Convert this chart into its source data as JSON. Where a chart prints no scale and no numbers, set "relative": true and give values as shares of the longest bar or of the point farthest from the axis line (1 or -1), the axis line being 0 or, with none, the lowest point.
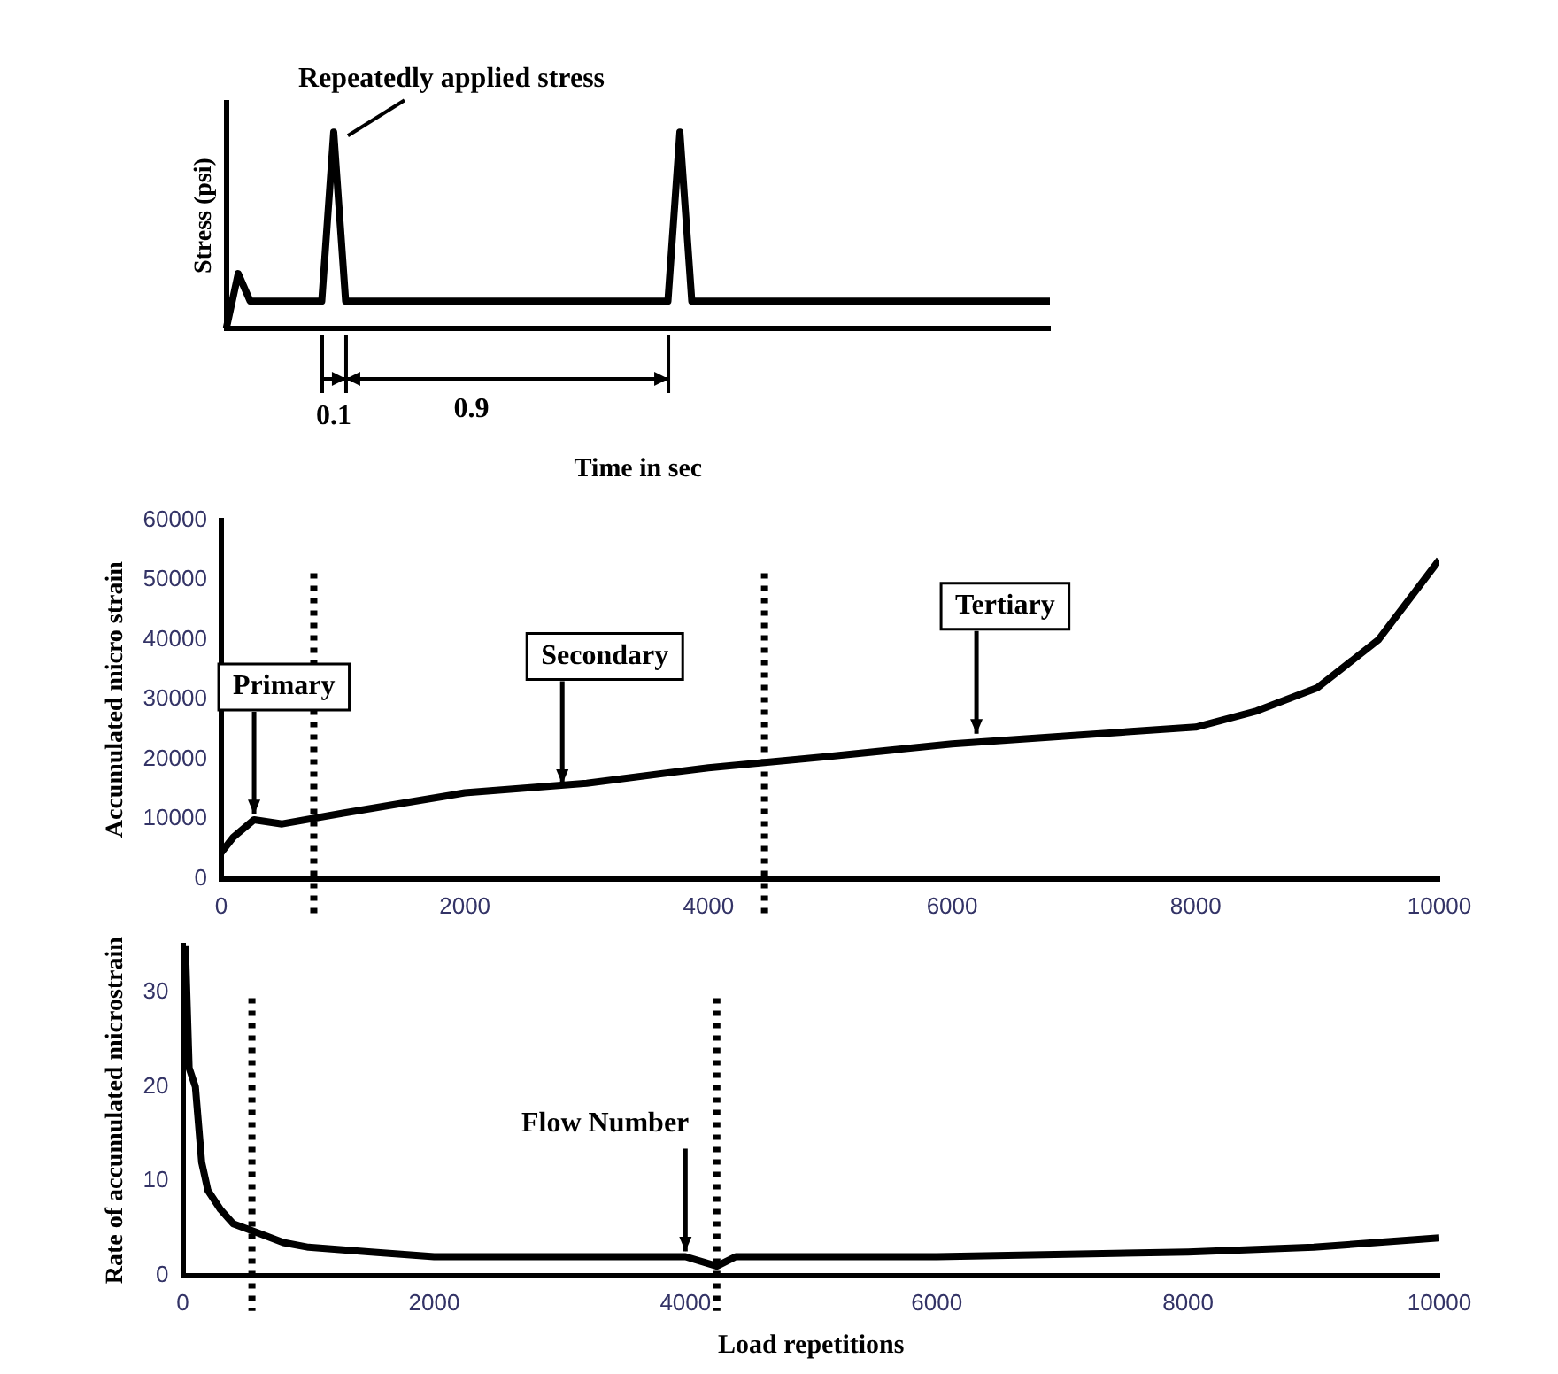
{
  "chart_data": [
    {
      "type": "line",
      "relative": true,
      "ylabel": "Stress (psi)",
      "xlabel": "Time in sec",
      "annotations": [
        "Repeatedly applied stress",
        "0.1",
        "0.9"
      ],
      "categories": [
        null,
        null,
        null,
        null,
        null,
        null,
        null,
        null,
        null,
        null,
        null,
        null,
        null,
        null,
        null,
        null,
        null,
        null,
        null,
        null,
        null,
        null,
        null,
        null,
        null,
        null,
        null,
        null,
        null,
        null,
        null,
        null,
        null,
        null,
        null,
        null,
        null,
        null,
        null,
        null,
        null,
        null,
        null,
        null,
        null,
        null,
        null,
        null,
        null,
        null,
        null,
        null,
        null,
        null,
        null,
        null,
        null,
        null,
        null,
        null,
        null,
        null,
        null,
        null,
        null,
        null,
        null,
        null,
        null,
        null
      ],
      "series": [
        {
          "color": "#000000",
          "values": [
            0,
            0.28,
            0.14,
            0.14,
            0.14,
            0.14,
            0.14,
            0.14,
            0.14,
            1,
            0.14,
            0.14,
            0.14,
            0.14,
            0.14,
            0.14,
            0.14,
            0.14,
            0.14,
            0.14,
            0.14,
            0.14,
            0.14,
            0.14,
            0.14,
            0.14,
            0.14,
            0.14,
            0.14,
            0.14,
            0.14,
            0.14,
            0.14,
            0.14,
            0.14,
            0.14,
            0.14,
            0.14,
            1,
            0.14,
            0.14,
            0.14,
            0.14,
            0.14,
            0.14,
            0.14,
            0.14,
            0.14,
            0.14,
            0.14,
            0.14,
            0.14,
            0.14,
            0.14,
            0.14,
            0.14,
            0.14,
            0.14,
            0.14,
            0.14,
            0.14,
            0.14,
            0.14,
            0.14,
            0.14,
            0.14,
            0.14,
            0.14,
            0.14,
            0.14
          ]
        }
      ]
    },
    {
      "type": "line",
      "ylabel": "Accumulated micro strain",
      "xlim": [
        0,
        10000
      ],
      "xticks": [
        0,
        2000,
        4000,
        6000,
        8000,
        10000
      ],
      "ylim": [
        0,
        60000
      ],
      "yticks": [
        0,
        10000,
        20000,
        30000,
        40000,
        50000,
        60000
      ],
      "annotations": [
        {
          "text": "Primary",
          "x": 270,
          "y": 9900
        },
        {
          "text": "Secondary",
          "x": 2800,
          "y": 15000
        },
        {
          "text": "Tertiary",
          "x": 6200,
          "y": 23400
        }
      ],
      "ref_lines": [
        {
          "axis": "x",
          "value": 760,
          "line_style": "dotted"
        },
        {
          "axis": "x",
          "value": 4460,
          "line_style": "dotted"
        }
      ],
      "series": [
        {
          "color": "#000000",
          "x": [
            0,
            100,
            270,
            500,
            1000,
            1500,
            2000,
            3000,
            4000,
            5000,
            6000,
            7000,
            8000,
            8500,
            9000,
            9500,
            10000
          ],
          "values": [
            4400,
            7000,
            9900,
            9200,
            11000,
            12700,
            14400,
            16000,
            18600,
            20500,
            22600,
            24000,
            25400,
            28100,
            32000,
            40000,
            53400
          ]
        }
      ]
    },
    {
      "type": "line",
      "ylabel": "Rate of accumulated microstrain",
      "xlabel": "Load repetitions",
      "xlim": [
        0,
        10000
      ],
      "xticks": [
        0,
        2000,
        4000,
        6000,
        8000,
        10000
      ],
      "ylim": [
        0,
        35
      ],
      "yticks": [
        0,
        10,
        20,
        30
      ],
      "annotations": [
        {
          "text": "Flow Number",
          "x": 4000,
          "y": 2
        }
      ],
      "ref_lines": [
        {
          "axis": "x",
          "value": 550,
          "line_style": "dotted"
        },
        {
          "axis": "x",
          "value": 4250,
          "line_style": "dotted"
        }
      ],
      "series": [
        {
          "color": "#000000",
          "x": [
            20,
            50,
            100,
            150,
            200,
            300,
            400,
            600,
            800,
            1000,
            1500,
            2000,
            3000,
            4000,
            4250,
            4400,
            6000,
            8000,
            9000,
            10000
          ],
          "values": [
            35,
            22,
            20,
            12,
            9,
            7,
            5.5,
            4.5,
            3.5,
            3,
            2.5,
            2,
            2,
            2,
            1,
            2,
            2,
            2.5,
            3,
            4
          ]
        }
      ]
    }
  ]
}
